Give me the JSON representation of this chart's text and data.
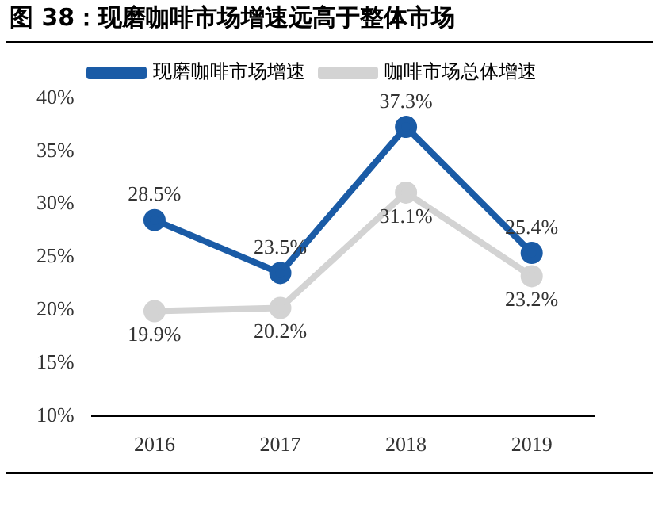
{
  "chart_data": {
    "type": "line",
    "title": "图 38：现磨咖啡市场增速远高于整体市场",
    "categories": [
      "2016",
      "2017",
      "2018",
      "2019"
    ],
    "series": [
      {
        "name": "现磨咖啡市场增速",
        "color": "#1a5ba6",
        "values": [
          28.5,
          23.5,
          37.3,
          25.4
        ],
        "value_labels": [
          "28.5%",
          "23.5%",
          "37.3%",
          "25.4%"
        ]
      },
      {
        "name": "咖啡市场总体增速",
        "color": "#d3d3d3",
        "values": [
          19.9,
          20.2,
          31.1,
          23.2
        ],
        "value_labels": [
          "19.9%",
          "20.2%",
          "31.1%",
          "23.2%"
        ]
      }
    ],
    "ylim": [
      10,
      40
    ],
    "yticks": [
      {
        "value": 10,
        "label": "10%"
      },
      {
        "value": 15,
        "label": "15%"
      },
      {
        "value": 20,
        "label": "20%"
      },
      {
        "value": 25,
        "label": "25%"
      },
      {
        "value": 30,
        "label": "30%"
      },
      {
        "value": 35,
        "label": "35%"
      },
      {
        "value": 40,
        "label": "40%"
      }
    ],
    "grid": false,
    "legend": "top",
    "marker": "circle",
    "line_style": "solid"
  }
}
